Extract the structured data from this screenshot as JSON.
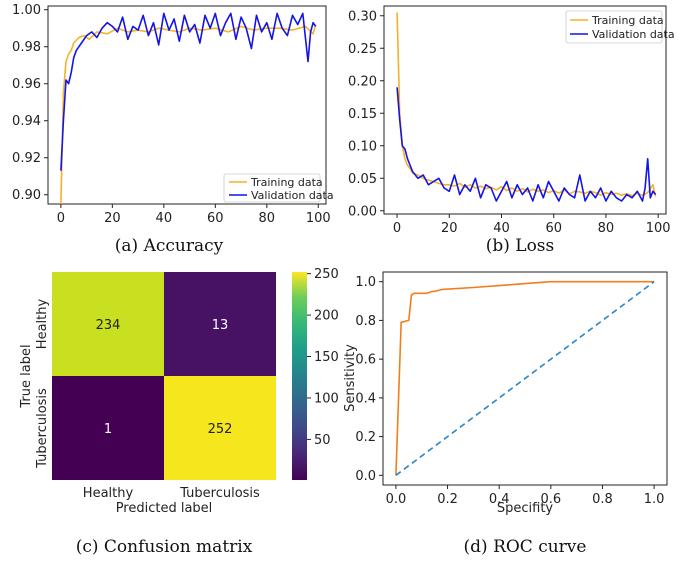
{
  "chart_data": [
    {
      "type": "line",
      "caption": "(a) Accuracy",
      "xlim": [
        -5,
        103
      ],
      "ylim": [
        0.895,
        1.002
      ],
      "xticks": [
        0,
        20,
        40,
        60,
        80,
        100
      ],
      "yticks": [
        0.9,
        0.92,
        0.94,
        0.96,
        0.98,
        1.0
      ],
      "ytick_labels": [
        "0.90",
        "0.92",
        "0.94",
        "0.96",
        "0.98",
        "1.00"
      ],
      "legend_position": "lower-right",
      "series": [
        {
          "name": "Training data",
          "color": "#f5b12a",
          "x": [
            0,
            1,
            2,
            3,
            4,
            5,
            7,
            9,
            11,
            14,
            18,
            22,
            26,
            30,
            34,
            38,
            42,
            46,
            50,
            55,
            60,
            65,
            70,
            75,
            80,
            85,
            90,
            95,
            98,
            99
          ],
          "y": [
            0.895,
            0.955,
            0.972,
            0.976,
            0.978,
            0.982,
            0.985,
            0.986,
            0.984,
            0.988,
            0.987,
            0.99,
            0.988,
            0.989,
            0.988,
            0.99,
            0.989,
            0.988,
            0.99,
            0.989,
            0.99,
            0.988,
            0.991,
            0.989,
            0.99,
            0.99,
            0.989,
            0.991,
            0.987,
            0.992
          ]
        },
        {
          "name": "Validation data",
          "color": "#1414e6",
          "x": [
            0,
            1,
            2,
            3,
            4,
            5,
            6,
            8,
            10,
            12,
            14,
            16,
            18,
            20,
            22,
            24,
            26,
            28,
            30,
            32,
            34,
            36,
            38,
            40,
            42,
            44,
            46,
            48,
            50,
            52,
            54,
            56,
            58,
            60,
            62,
            64,
            66,
            68,
            70,
            72,
            74,
            76,
            78,
            80,
            82,
            84,
            86,
            88,
            90,
            92,
            94,
            95,
            96,
            97,
            98,
            99
          ],
          "y": [
            0.913,
            0.94,
            0.962,
            0.96,
            0.966,
            0.974,
            0.978,
            0.982,
            0.986,
            0.988,
            0.985,
            0.99,
            0.993,
            0.991,
            0.988,
            0.996,
            0.984,
            0.991,
            0.989,
            0.997,
            0.986,
            0.993,
            0.981,
            0.998,
            0.989,
            0.995,
            0.983,
            0.997,
            0.988,
            0.992,
            0.982,
            0.997,
            0.99,
            0.998,
            0.986,
            0.993,
            0.998,
            0.984,
            0.996,
            0.99,
            0.979,
            0.997,
            0.988,
            0.993,
            0.984,
            0.998,
            0.99,
            0.986,
            0.997,
            0.992,
            0.998,
            0.985,
            0.972,
            0.988,
            0.993,
            0.991
          ]
        }
      ]
    },
    {
      "type": "line",
      "caption": "(b) Loss",
      "xlim": [
        -5,
        103
      ],
      "ylim": [
        -0.005,
        0.315
      ],
      "xticks": [
        0,
        20,
        40,
        60,
        80,
        100
      ],
      "yticks": [
        0.0,
        0.05,
        0.1,
        0.15,
        0.2,
        0.25,
        0.3
      ],
      "ytick_labels": [
        "0.00",
        "0.05",
        "0.10",
        "0.15",
        "0.20",
        "0.25",
        "0.30"
      ],
      "legend_position": "upper-right",
      "series": [
        {
          "name": "Training data",
          "color": "#f5b12a",
          "x": [
            0,
            1,
            2,
            3,
            4,
            5,
            6,
            8,
            10,
            12,
            14,
            16,
            18,
            20,
            22,
            24,
            26,
            28,
            30,
            32,
            34,
            36,
            38,
            40,
            42,
            44,
            46,
            48,
            50,
            52,
            54,
            56,
            58,
            60,
            62,
            64,
            66,
            68,
            70,
            72,
            74,
            76,
            78,
            80,
            82,
            84,
            86,
            88,
            90,
            92,
            94,
            96,
            98,
            99
          ],
          "y": [
            0.305,
            0.15,
            0.1,
            0.08,
            0.07,
            0.065,
            0.058,
            0.055,
            0.05,
            0.047,
            0.045,
            0.042,
            0.04,
            0.04,
            0.038,
            0.042,
            0.036,
            0.04,
            0.035,
            0.038,
            0.034,
            0.036,
            0.032,
            0.037,
            0.031,
            0.035,
            0.03,
            0.034,
            0.029,
            0.033,
            0.03,
            0.032,
            0.028,
            0.031,
            0.027,
            0.032,
            0.026,
            0.03,
            0.029,
            0.027,
            0.03,
            0.028,
            0.024,
            0.028,
            0.025,
            0.027,
            0.024,
            0.026,
            0.023,
            0.027,
            0.024,
            0.028,
            0.04,
            0.022
          ]
        },
        {
          "name": "Validation data",
          "color": "#1414e6",
          "x": [
            0,
            1,
            2,
            3,
            4,
            5,
            6,
            8,
            10,
            12,
            14,
            16,
            18,
            20,
            22,
            24,
            26,
            28,
            30,
            32,
            34,
            36,
            38,
            40,
            42,
            44,
            46,
            48,
            50,
            52,
            54,
            56,
            58,
            60,
            62,
            64,
            66,
            68,
            70,
            72,
            74,
            76,
            78,
            80,
            82,
            84,
            86,
            88,
            90,
            92,
            94,
            95,
            96,
            97,
            98,
            99
          ],
          "y": [
            0.19,
            0.14,
            0.1,
            0.095,
            0.08,
            0.07,
            0.06,
            0.05,
            0.055,
            0.04,
            0.045,
            0.05,
            0.035,
            0.03,
            0.055,
            0.025,
            0.04,
            0.03,
            0.05,
            0.02,
            0.04,
            0.035,
            0.015,
            0.03,
            0.045,
            0.02,
            0.04,
            0.025,
            0.035,
            0.015,
            0.04,
            0.02,
            0.045,
            0.03,
            0.015,
            0.035,
            0.025,
            0.02,
            0.055,
            0.015,
            0.03,
            0.02,
            0.035,
            0.015,
            0.03,
            0.02,
            0.015,
            0.025,
            0.02,
            0.03,
            0.015,
            0.035,
            0.08,
            0.02,
            0.03,
            0.025
          ]
        }
      ]
    },
    {
      "type": "heatmap",
      "caption": "(c) Confusion matrix",
      "xlabel": "Predicted label",
      "ylabel": "True label",
      "row_labels": [
        "Healthy",
        "Tuberculosis"
      ],
      "col_labels": [
        "Healthy",
        "Tuberculosis"
      ],
      "values": [
        [
          234,
          13
        ],
        [
          1,
          252
        ]
      ],
      "cell_colors": [
        [
          "#c8e020",
          "#471164"
        ],
        [
          "#440154",
          "#f5e61e"
        ]
      ],
      "colorbar": {
        "range": [
          1,
          252
        ],
        "ticks": [
          50,
          100,
          150,
          200,
          250
        ],
        "tick_labels": [
          "50",
          "100",
          "150",
          "200",
          "250"
        ]
      }
    },
    {
      "type": "line",
      "caption": "(d) ROC curve",
      "xlabel": "Specifity",
      "ylabel": "Sensitivity",
      "xlim": [
        -0.05,
        1.05
      ],
      "ylim": [
        -0.05,
        1.05
      ],
      "xticks": [
        0.0,
        0.2,
        0.4,
        0.6,
        0.8,
        1.0
      ],
      "xtick_labels": [
        "0.0",
        "0.2",
        "0.4",
        "0.6",
        "0.8",
        "1.0"
      ],
      "yticks": [
        0.0,
        0.2,
        0.4,
        0.6,
        0.8,
        1.0
      ],
      "ytick_labels": [
        "0.0",
        "0.2",
        "0.4",
        "0.6",
        "0.8",
        "1.0"
      ],
      "series": [
        {
          "color": "#f07f1b",
          "x": [
            0.0,
            0.02,
            0.02,
            0.05,
            0.06,
            0.07,
            0.1,
            0.12,
            0.14,
            0.15,
            0.18,
            0.3,
            0.4,
            0.5,
            0.6,
            0.8,
            1.0
          ],
          "y": [
            0.0,
            0.78,
            0.79,
            0.8,
            0.93,
            0.94,
            0.94,
            0.94,
            0.95,
            0.95,
            0.96,
            0.97,
            0.98,
            0.99,
            1.0,
            1.0,
            1.0
          ]
        },
        {
          "color": "#2a85c8",
          "dashed": true,
          "x": [
            0,
            1
          ],
          "y": [
            0,
            1
          ]
        }
      ]
    }
  ]
}
